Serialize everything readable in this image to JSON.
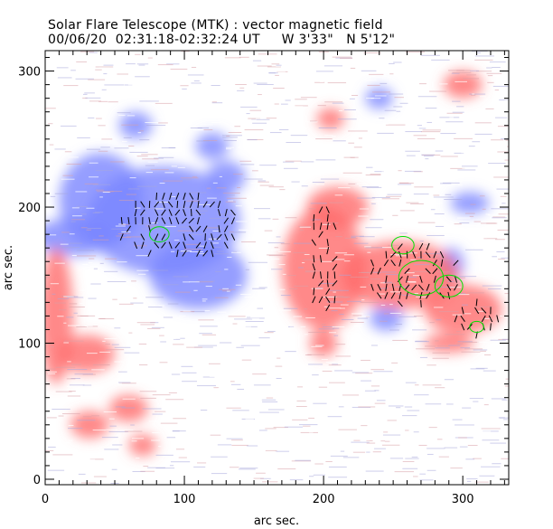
{
  "chart_data": {
    "type": "heatmap",
    "title": "Solar Flare Telescope (MTK) : vector magnetic field",
    "subtitle": "00/06/20  02:31:18-02:32:24 UT     W 3'33\"   N 5'12\"",
    "xlabel": "arc sec.",
    "ylabel": "arc sec.",
    "xlim": [
      0,
      333
    ],
    "ylim": [
      -4,
      315
    ],
    "xticks": [
      0,
      100,
      200,
      300
    ],
    "yticks": [
      0,
      100,
      200,
      300
    ],
    "colors": {
      "positive": "#ff3030",
      "negative": "#3040ff",
      "contour": "#00e000",
      "vector": "#000000"
    },
    "negative_regions": [
      [
        85,
        190,
        55,
        40
      ],
      [
        40,
        205,
        30,
        35
      ],
      [
        110,
        150,
        35,
        25
      ],
      [
        20,
        178,
        28,
        14
      ],
      [
        120,
        245,
        12,
        10
      ],
      [
        130,
        222,
        14,
        12
      ],
      [
        240,
        280,
        10,
        8
      ],
      [
        292,
        158,
        9,
        12
      ],
      [
        245,
        118,
        12,
        9
      ],
      [
        305,
        203,
        14,
        8
      ],
      [
        65,
        260,
        12,
        10
      ]
    ],
    "positive_regions": [
      [
        200,
        155,
        30,
        45
      ],
      [
        255,
        150,
        42,
        25
      ],
      [
        300,
        125,
        28,
        18
      ],
      [
        210,
        200,
        22,
        15
      ],
      [
        8,
        120,
        12,
        50
      ],
      [
        30,
        92,
        20,
        14
      ],
      [
        60,
        52,
        14,
        10
      ],
      [
        32,
        40,
        14,
        10
      ],
      [
        200,
        100,
        10,
        10
      ],
      [
        290,
        100,
        18,
        7
      ],
      [
        300,
        290,
        14,
        10
      ],
      [
        205,
        265,
        10,
        8
      ],
      [
        70,
        25,
        10,
        8
      ]
    ],
    "contours": [
      [
        82,
        180,
        7
      ],
      [
        257,
        172,
        8
      ],
      [
        270,
        148,
        16
      ],
      [
        290,
        142,
        10
      ],
      [
        310,
        112,
        5
      ]
    ],
    "vector_regions": [
      [
        95,
        185,
        45,
        25
      ],
      [
        200,
        160,
        12,
        40
      ],
      [
        265,
        148,
        35,
        25
      ],
      [
        310,
        118,
        15,
        12
      ]
    ]
  }
}
